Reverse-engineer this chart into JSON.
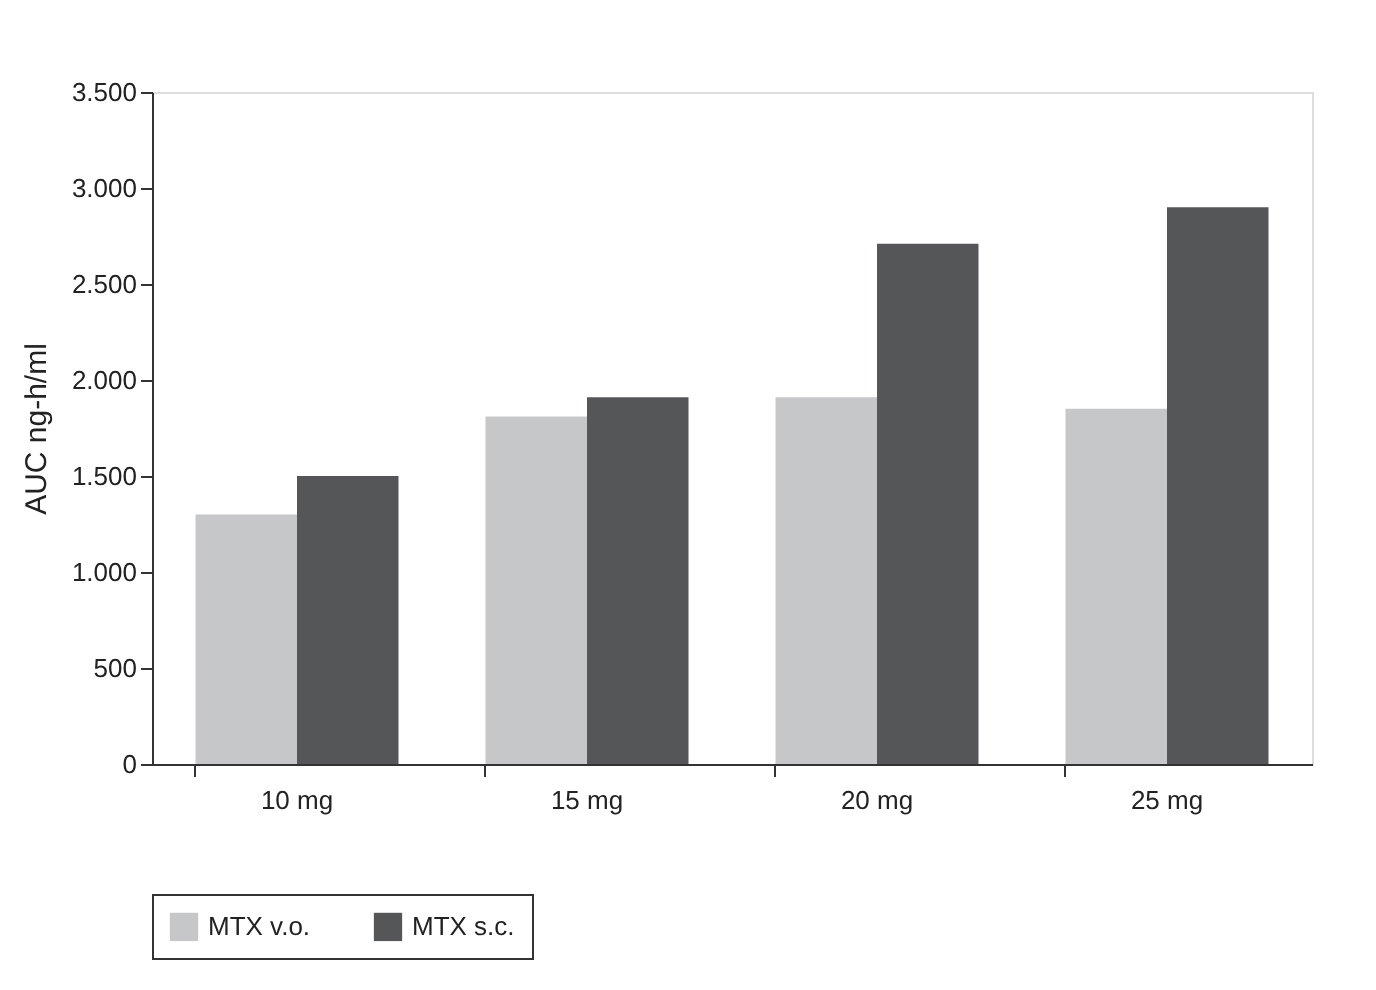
{
  "chart_data": {
    "type": "bar",
    "ylabel": "AUC ng-h/ml",
    "categories": [
      "10 mg",
      "15 mg",
      "20 mg",
      "25 mg"
    ],
    "series": [
      {
        "name": "MTX v.o.",
        "color": "#c6c7c9",
        "values": [
          1300,
          1810,
          1910,
          1850
        ]
      },
      {
        "name": "MTX s.c.",
        "color": "#555658",
        "values": [
          1500,
          1910,
          2710,
          2900
        ]
      }
    ],
    "ylim": [
      0,
      3500
    ],
    "yticks": [
      0,
      500,
      {
        "value": 1000,
        "label": "1.000"
      },
      {
        "value": 1500,
        "label": "1.500"
      },
      {
        "value": 2000,
        "label": "2.000"
      },
      {
        "value": 2500,
        "label": "2.500"
      },
      {
        "value": 3000,
        "label": "3.000"
      },
      {
        "value": 3500,
        "label": "3.500"
      }
    ],
    "grid": false,
    "legend": "bottom"
  }
}
